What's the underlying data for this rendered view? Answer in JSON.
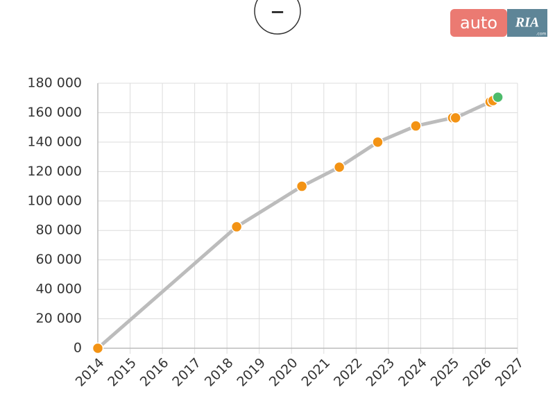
{
  "ui": {
    "zoom_out_button": "−",
    "logo": {
      "left": "auto",
      "right": "RIA",
      "sub": ".com"
    }
  },
  "chart_data": {
    "type": "line",
    "x": [
      2014.0,
      2018.3,
      2020.32,
      2021.48,
      2022.67,
      2023.85,
      2024.99,
      2025.08,
      2026.15,
      2026.24,
      2026.39
    ],
    "values": [
      0,
      82500,
      110000,
      123000,
      140000,
      151000,
      156500,
      156500,
      167300,
      168200,
      170500
    ],
    "line_color": "#bcbcbc",
    "marker_color": "#f39314",
    "last_marker_color": "#4dbb6b",
    "xlim": [
      2014,
      2027
    ],
    "xticks": [
      2014,
      2015,
      2016,
      2017,
      2018,
      2019,
      2020,
      2021,
      2022,
      2023,
      2024,
      2025,
      2026,
      2027
    ],
    "ylim": [
      0,
      180000
    ],
    "yticks": [
      {
        "value": 0,
        "label": "0"
      },
      {
        "value": 20000,
        "label": "20 000"
      },
      {
        "value": 40000,
        "label": "40 000"
      },
      {
        "value": 60000,
        "label": "60 000"
      },
      {
        "value": 80000,
        "label": "80 000"
      },
      {
        "value": 100000,
        "label": "100 000"
      },
      {
        "value": 120000,
        "label": "120 000"
      },
      {
        "value": 140000,
        "label": "140 000"
      },
      {
        "value": 160000,
        "label": "160 000"
      },
      {
        "value": 180000,
        "label": "180 000"
      }
    ],
    "grid": true
  }
}
